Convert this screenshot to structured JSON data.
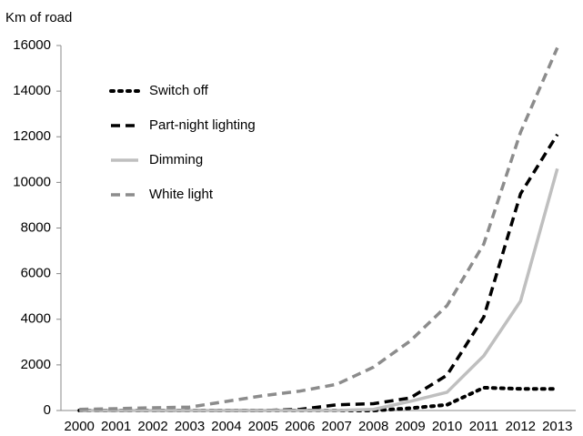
{
  "chart_data": {
    "type": "line",
    "y_label": "Km of road",
    "categories": [
      "2000",
      "2001",
      "2002",
      "2003",
      "2004",
      "2005",
      "2006",
      "2007",
      "2008",
      "2009",
      "2010",
      "2011",
      "2012",
      "2013"
    ],
    "series": [
      {
        "name": "Switch off",
        "color": "#000000",
        "dash": "dotted",
        "values": [
          0,
          0,
          0,
          0,
          0,
          0,
          0,
          0,
          0,
          100,
          250,
          1000,
          950,
          950
        ]
      },
      {
        "name": "Part-night lighting",
        "color": "#000000",
        "dash": "dashed",
        "values": [
          0,
          0,
          0,
          0,
          0,
          0,
          50,
          250,
          300,
          550,
          1550,
          4100,
          9500,
          12100
        ]
      },
      {
        "name": "Dimming",
        "color": "#bfbfbf",
        "dash": "solid",
        "values": [
          0,
          0,
          0,
          0,
          0,
          0,
          0,
          0,
          50,
          400,
          800,
          2400,
          4800,
          10600
        ]
      },
      {
        "name": "White light",
        "color": "#8c8c8c",
        "dash": "dashed",
        "values": [
          50,
          80,
          120,
          150,
          400,
          650,
          850,
          1150,
          1900,
          3050,
          4600,
          7300,
          12200,
          15900
        ]
      }
    ],
    "ylim": [
      0,
      16000
    ],
    "yticks": [
      0,
      2000,
      4000,
      6000,
      8000,
      10000,
      12000,
      14000,
      16000
    ],
    "legend": "upper left"
  }
}
